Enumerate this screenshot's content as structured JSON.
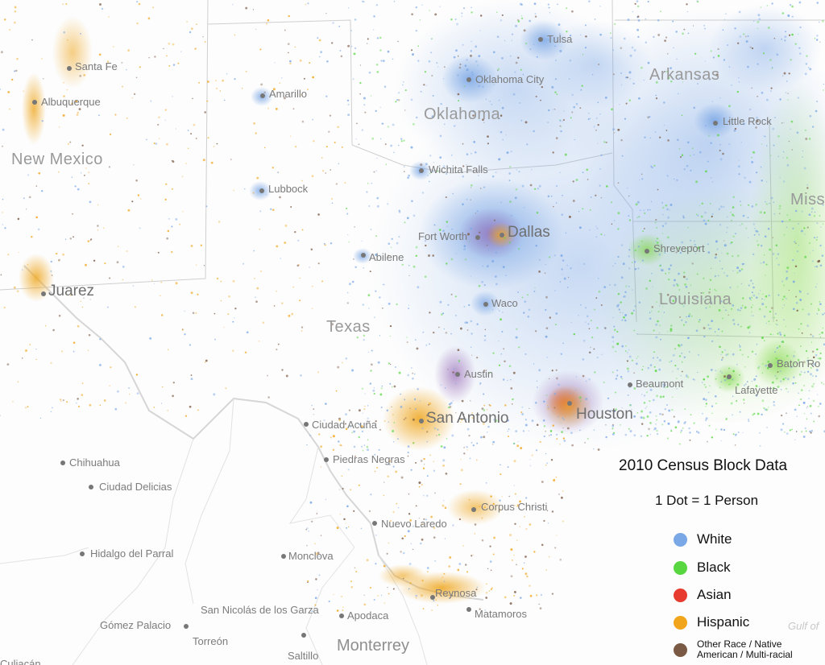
{
  "colors": {
    "white": "#7aa7e6",
    "black": "#57d63f",
    "asian": "#e63b2e",
    "hispanic": "#f0a51b",
    "other": "#7b5a45"
  },
  "states": [
    {
      "id": "new-mexico",
      "label": "New Mexico"
    },
    {
      "id": "oklahoma",
      "label": "Oklahoma"
    },
    {
      "id": "arkansas",
      "label": "Arkansas"
    },
    {
      "id": "texas",
      "label": "Texas"
    },
    {
      "id": "louisiana",
      "label": "Louisiana"
    },
    {
      "id": "mississippi",
      "label": "Miss"
    }
  ],
  "cities": [
    {
      "id": "santa-fe",
      "label": "Santa Fe"
    },
    {
      "id": "albuquerque",
      "label": "Albuquerque"
    },
    {
      "id": "amarillo",
      "label": "Amarillo"
    },
    {
      "id": "tulsa",
      "label": "Tulsa"
    },
    {
      "id": "oklahoma-city",
      "label": "Oklahoma City"
    },
    {
      "id": "little-rock",
      "label": "Little Rock"
    },
    {
      "id": "wichita-falls",
      "label": "Wichita Falls"
    },
    {
      "id": "lubbock",
      "label": "Lubbock"
    },
    {
      "id": "fort-worth",
      "label": "Fort Worth"
    },
    {
      "id": "dallas",
      "label": "Dallas"
    },
    {
      "id": "shreveport",
      "label": "Shreveport"
    },
    {
      "id": "abilene",
      "label": "Abilene"
    },
    {
      "id": "juarez",
      "label": "Juarez"
    },
    {
      "id": "waco",
      "label": "Waco"
    },
    {
      "id": "austin",
      "label": "Austin"
    },
    {
      "id": "beaumont",
      "label": "Beaumont"
    },
    {
      "id": "lafayette",
      "label": "Lafayette"
    },
    {
      "id": "baton-rouge",
      "label": "Baton Ro"
    },
    {
      "id": "san-antonio",
      "label": "San Antonio"
    },
    {
      "id": "houston",
      "label": "Houston"
    },
    {
      "id": "corpus-christi",
      "label": "Corpus Christi"
    },
    {
      "id": "reynosa",
      "label": "Reynosa"
    },
    {
      "id": "matamoros",
      "label": "Matamoros"
    }
  ],
  "mexico_places": [
    {
      "id": "ciudad-acuna",
      "label": "Ciudad Acuña"
    },
    {
      "id": "piedras-negras",
      "label": "Piedras Negras"
    },
    {
      "id": "chihuahua",
      "label": "Chihuahua"
    },
    {
      "id": "ciudad-delicias",
      "label": "Ciudad Delicias"
    },
    {
      "id": "nuevo-laredo",
      "label": "Nuevo Laredo"
    },
    {
      "id": "hidalgo-del-parral",
      "label": "Hidalgo del Parral"
    },
    {
      "id": "monclova",
      "label": "Monclova"
    },
    {
      "id": "san-nicolas",
      "label": "San Nicolás de los Garza"
    },
    {
      "id": "apodaca",
      "label": "Apodaca"
    },
    {
      "id": "gomez-palacio",
      "label": "Gómez Palacio"
    },
    {
      "id": "torreon",
      "label": "Torreón"
    },
    {
      "id": "saltillo",
      "label": "Saltillo"
    },
    {
      "id": "monterrey",
      "label": "Monterrey"
    },
    {
      "id": "culiacan",
      "label": "Culiacán"
    }
  ],
  "watermark": "Gulf of",
  "legend": {
    "title": "2010 Census Block Data",
    "subtitle": "1 Dot = 1 Person",
    "items": [
      {
        "label": "White",
        "color": "#7aa7e6"
      },
      {
        "label": "Black",
        "color": "#57d63f"
      },
      {
        "label": "Asian",
        "color": "#e63b2e"
      },
      {
        "label": "Hispanic",
        "color": "#f0a51b"
      },
      {
        "label": "Other Race / Native American / Multi-racial",
        "color": "#7b5a45"
      }
    ]
  }
}
